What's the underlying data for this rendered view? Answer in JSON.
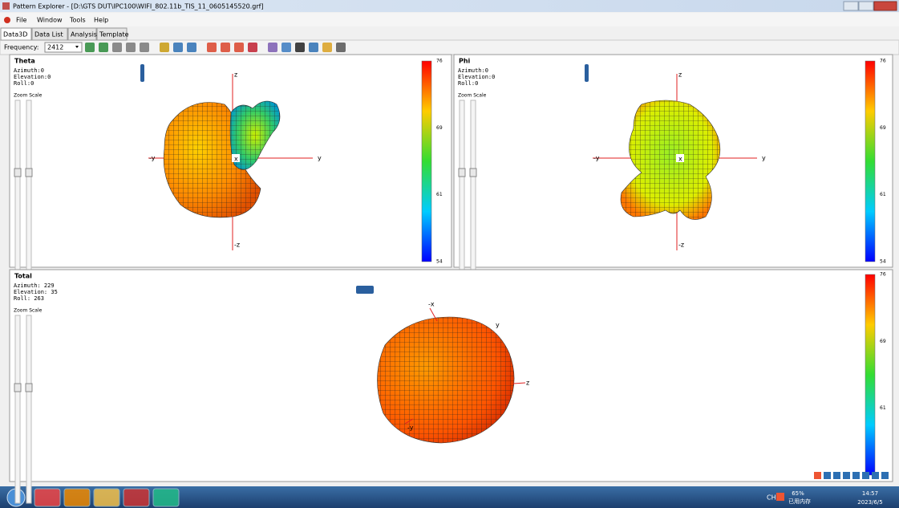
{
  "window": {
    "title": "Pattern Explorer - [D:\\GTS DUT\\IPC100\\WIFI_802.11b_TIS_11_0605145520.grf]",
    "menu": [
      "File",
      "Window",
      "Tools",
      "Help"
    ]
  },
  "tabs": [
    "Data3D",
    "Data List",
    "Analysis",
    "Template"
  ],
  "toolbar": {
    "frequency_label": "Frequency:",
    "frequency": 2412
  },
  "panels": [
    {
      "title": "Theta",
      "azimuth": "Azimuth:0",
      "elevation": "Elevation:0",
      "roll": "Roll:0",
      "zoom": "Zoom Scale",
      "axes": [
        "z",
        "-y",
        "y",
        "x",
        "-z"
      ],
      "colorbar": [
        76,
        69,
        61,
        54
      ]
    },
    {
      "title": "Phi",
      "azimuth": "Azimuth:0",
      "elevation": "Elevation:0",
      "roll": "Roll:0",
      "zoom": "Zoom Scale",
      "axes": [
        "z",
        "-y",
        "y",
        "x",
        "-z"
      ],
      "colorbar": [
        76,
        69,
        61,
        54
      ]
    },
    {
      "title": "Total",
      "azimuth": "Azimuth: 229",
      "elevation": "Elevation: 35",
      "roll": "Roll: 263",
      "zoom": "Zoom Scale",
      "axes": [
        "-x",
        "y",
        "z",
        "-y"
      ],
      "colorbar": [
        76,
        69,
        61
      ]
    }
  ],
  "taskbar": {
    "ime": "CH",
    "memory_percent": "65%",
    "memory_label": "已用内存",
    "time": "14:57",
    "date": "2023/6/5"
  }
}
